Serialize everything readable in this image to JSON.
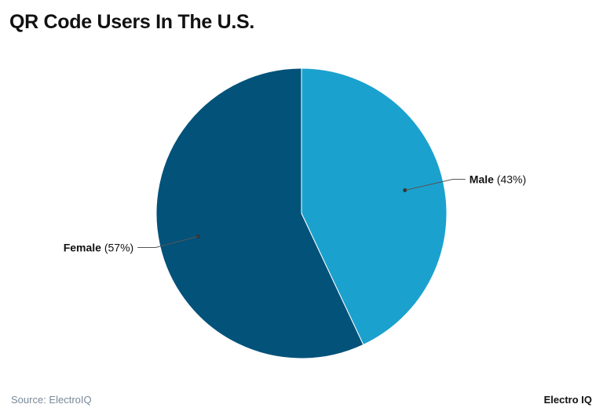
{
  "title": "QR Code Users In The U.S.",
  "footer": {
    "source": "Source: ElectroIQ",
    "logo": "Electro IQ"
  },
  "chart_data": {
    "type": "pie",
    "title": "QR Code Users In The U.S.",
    "categories": [
      "Male",
      "Female"
    ],
    "values": [
      43,
      57
    ],
    "labels": [
      "(43%)",
      "(57%)"
    ],
    "colors": [
      "#1ba1ce",
      "#02527a"
    ],
    "start": "top, clockwise",
    "legend": "none (direct labels)"
  }
}
